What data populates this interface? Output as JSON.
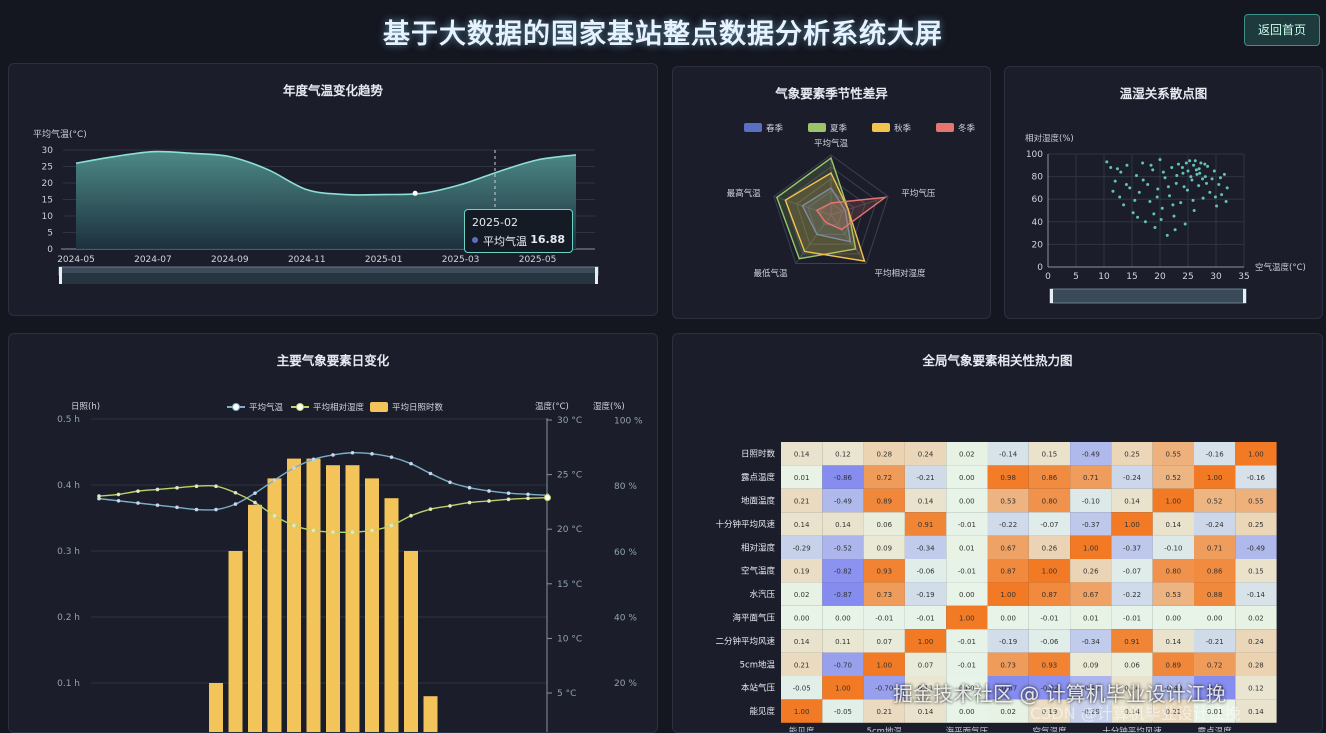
{
  "header": {
    "title": "基于大数据的国家基站整点数据分析系统大屏",
    "back_label": "返回首页"
  },
  "panels": {
    "trend": "年度气温变化趋势",
    "season": "气象要素季节性差异",
    "scatter": "温湿关系散点图",
    "daily": "主要气象要素日变化",
    "heatmap": "全局气象要素相关性热力图"
  },
  "tooltip": {
    "date": "2025-02",
    "label": "平均气温",
    "value": "16.88"
  },
  "watermark": {
    "text": "掘金技术社区 @ 计算机毕业设计江挽",
    "text2": "CSDN @计算机毕业设计江挽"
  },
  "colors": {
    "accent": "#6ed3c4",
    "temp_line": "#7ab0c6",
    "humid_line": "#b8d36a",
    "bar": "#f2c45a"
  },
  "chart_data": [
    {
      "id": "trend",
      "type": "area",
      "ylabel": "平均气温(°C)",
      "ylim": [
        0,
        30
      ],
      "yticks": [
        0,
        5,
        10,
        15,
        20,
        25,
        30
      ],
      "x": [
        "2024-05",
        "2024-06",
        "2024-07",
        "2024-08",
        "2024-09",
        "2024-10",
        "2024-11",
        "2024-12",
        "2025-01",
        "2025-02",
        "2025-03",
        "2025-04",
        "2025-05",
        "2025-06"
      ],
      "xticks": [
        "2024-05",
        "2024-07",
        "2024-09",
        "2024-11",
        "2025-01",
        "2025-03",
        "2025-05"
      ],
      "series": [
        {
          "name": "平均气温",
          "values": [
            26,
            28,
            29.5,
            29,
            28,
            24,
            18,
            16.5,
            16.5,
            16.88,
            19.5,
            23.5,
            27,
            28.5
          ]
        }
      ],
      "grid": true
    },
    {
      "id": "season",
      "type": "radar",
      "indicators": [
        "平均气温",
        "平均气压",
        "平均相对湿度",
        "最低气温",
        "最高气温"
      ],
      "legend": [
        "春季",
        "夏季",
        "秋季",
        "冬季"
      ],
      "legend_colors": [
        "#5b6fc2",
        "#9ac56a",
        "#f3c34f",
        "#e5756e"
      ],
      "series": [
        {
          "name": "春季",
          "values": [
            0.45,
            0.25,
            0.55,
            0.4,
            0.5
          ]
        },
        {
          "name": "夏季",
          "values": [
            0.95,
            0.3,
            0.7,
            0.9,
            0.95
          ]
        },
        {
          "name": "秋季",
          "values": [
            0.7,
            0.3,
            0.95,
            0.75,
            0.8
          ]
        },
        {
          "name": "冬季",
          "values": [
            0.2,
            0.95,
            0.3,
            0.15,
            0.25
          ]
        }
      ]
    },
    {
      "id": "scatter",
      "type": "scatter",
      "xlabel": "空气温度(°C)",
      "ylabel": "相对湿度(%)",
      "xlim": [
        0,
        35
      ],
      "ylim": [
        0,
        100
      ],
      "xticks": [
        0,
        5,
        10,
        15,
        20,
        25,
        30,
        35
      ],
      "yticks": [
        0,
        20,
        40,
        60,
        80,
        100
      ],
      "points": [
        [
          10.5,
          93
        ],
        [
          11.2,
          88
        ],
        [
          12.0,
          76
        ],
        [
          12.8,
          62
        ],
        [
          13.5,
          55
        ],
        [
          14.1,
          90
        ],
        [
          14.6,
          70
        ],
        [
          15.2,
          48
        ],
        [
          15.8,
          81
        ],
        [
          16.3,
          66
        ],
        [
          16.9,
          92
        ],
        [
          17.4,
          40
        ],
        [
          17.8,
          73
        ],
        [
          18.2,
          58
        ],
        [
          18.7,
          86
        ],
        [
          19.1,
          35
        ],
        [
          19.6,
          69
        ],
        [
          20.0,
          95
        ],
        [
          20.4,
          52
        ],
        [
          20.9,
          79
        ],
        [
          21.3,
          28
        ],
        [
          21.7,
          63
        ],
        [
          22.1,
          88
        ],
        [
          22.5,
          45
        ],
        [
          22.9,
          74
        ],
        [
          23.3,
          91
        ],
        [
          23.7,
          57
        ],
        [
          24.1,
          83
        ],
        [
          24.5,
          38
        ],
        [
          24.9,
          68
        ],
        [
          25.3,
          94
        ],
        [
          25.7,
          77
        ],
        [
          26.1,
          50
        ],
        [
          26.5,
          86
        ],
        [
          26.9,
          72
        ],
        [
          27.3,
          92
        ],
        [
          27.7,
          61
        ],
        [
          28.1,
          80
        ],
        [
          28.5,
          89
        ],
        [
          28.9,
          66
        ],
        [
          29.3,
          78
        ],
        [
          29.7,
          85
        ],
        [
          30.1,
          54
        ],
        [
          30.5,
          73
        ],
        [
          31.0,
          64
        ],
        [
          31.5,
          82
        ],
        [
          32.0,
          70
        ],
        [
          11.6,
          67
        ],
        [
          13.0,
          84
        ],
        [
          15.5,
          59
        ],
        [
          17.0,
          77
        ],
        [
          18.9,
          47
        ],
        [
          20.6,
          84
        ],
        [
          22.7,
          33
        ],
        [
          24.3,
          71
        ],
        [
          25.9,
          59
        ],
        [
          27.1,
          83
        ],
        [
          28.3,
          74
        ],
        [
          29.9,
          62
        ],
        [
          23.0,
          81
        ],
        [
          24.0,
          88
        ],
        [
          25.0,
          85
        ],
        [
          26.0,
          90
        ],
        [
          27.0,
          87
        ],
        [
          28.0,
          91
        ],
        [
          25.5,
          80
        ],
        [
          26.6,
          82
        ],
        [
          24.7,
          92
        ],
        [
          27.6,
          78
        ],
        [
          26.3,
          94
        ],
        [
          19.5,
          62
        ],
        [
          21.5,
          71
        ],
        [
          16.0,
          44
        ],
        [
          14.0,
          73
        ],
        [
          12.4,
          87
        ],
        [
          30.8,
          79
        ],
        [
          31.8,
          58
        ],
        [
          22.3,
          55
        ],
        [
          18.4,
          90
        ],
        [
          20.2,
          42
        ]
      ]
    },
    {
      "id": "daily",
      "type": "bar+line",
      "legend": [
        "平均气温",
        "平均相对湿度",
        "平均日照时数"
      ],
      "y_left_label": "日照(h)",
      "y_left_ticks": [
        "0.1 h",
        "0.2 h",
        "0.3 h",
        "0.4 h",
        "0.5 h"
      ],
      "y_temp_label": "温度(°C)",
      "y_temp_ticks": [
        "5 °C",
        "10 °C",
        "15 °C",
        "20 °C",
        "25 °C",
        "30 °C"
      ],
      "y_humid_label": "湿度(%)",
      "y_humid_ticks": [
        "20 %",
        "40 %",
        "60 %",
        "80 %",
        "100 %"
      ],
      "hours": [
        0,
        1,
        2,
        3,
        4,
        5,
        6,
        7,
        8,
        9,
        10,
        11,
        12,
        13,
        14,
        15,
        16,
        17,
        18,
        19,
        20,
        21,
        22,
        23
      ],
      "sunshine": [
        0,
        0,
        0,
        0,
        0,
        0,
        0.1,
        0.3,
        0.37,
        0.41,
        0.44,
        0.44,
        0.43,
        0.43,
        0.41,
        0.38,
        0.3,
        0.08,
        0,
        0,
        0,
        0,
        0,
        0
      ],
      "temperature": [
        22.8,
        22.6,
        22.4,
        22.2,
        22,
        21.8,
        21.8,
        22.3,
        23.3,
        24.5,
        25.6,
        26.4,
        26.8,
        27,
        26.9,
        26.6,
        26,
        25.1,
        24.3,
        23.8,
        23.5,
        23.3,
        23.2,
        23.1
      ],
      "humidity": [
        77,
        77.5,
        78.5,
        79,
        79.5,
        80,
        80,
        78,
        75,
        71,
        68,
        66.5,
        66,
        66,
        66.5,
        68,
        71,
        73,
        74,
        75,
        75.5,
        76,
        76.3,
        76.5
      ]
    },
    {
      "id": "heatmap",
      "type": "heatmap",
      "rows": [
        "日照时数",
        "露点温度",
        "地面温度",
        "十分钟平均风速",
        "相对湿度",
        "空气温度",
        "水汽压",
        "海平面气压",
        "二分钟平均风速",
        "5cm地温",
        "本站气压",
        "能见度"
      ],
      "col_labels": [
        "能见度",
        "5cm地温",
        "海平面气压",
        "空气温度",
        "十分钟平均风速",
        "露点温度"
      ],
      "values": [
        [
          0.14,
          0.12,
          0.28,
          0.24,
          0.02,
          -0.14,
          0.15,
          -0.49,
          0.25,
          0.55,
          -0.16,
          1.0
        ],
        [
          0.01,
          -0.86,
          0.72,
          -0.21,
          0.0,
          0.98,
          0.86,
          0.71,
          -0.24,
          0.52,
          1.0,
          -0.16
        ],
        [
          0.21,
          -0.49,
          0.89,
          0.14,
          0.0,
          0.53,
          0.8,
          -0.1,
          0.14,
          1.0,
          0.52,
          0.55
        ],
        [
          0.14,
          0.14,
          0.06,
          0.91,
          -0.01,
          -0.22,
          -0.07,
          -0.37,
          1.0,
          0.14,
          -0.24,
          0.25
        ],
        [
          -0.29,
          -0.52,
          0.09,
          -0.34,
          0.01,
          0.67,
          0.26,
          1.0,
          -0.37,
          -0.1,
          0.71,
          -0.49
        ],
        [
          0.19,
          -0.82,
          0.93,
          -0.06,
          -0.01,
          0.87,
          1.0,
          0.26,
          -0.07,
          0.8,
          0.86,
          0.15
        ],
        [
          0.02,
          -0.87,
          0.73,
          -0.19,
          0.0,
          1.0,
          0.87,
          0.67,
          -0.22,
          0.53,
          0.88,
          -0.14
        ],
        [
          0.0,
          0.0,
          -0.01,
          -0.01,
          1.0,
          0.0,
          -0.01,
          0.01,
          -0.01,
          0.0,
          0.0,
          0.02
        ],
        [
          0.14,
          0.11,
          0.07,
          1.0,
          -0.01,
          -0.19,
          -0.06,
          -0.34,
          0.91,
          0.14,
          -0.21,
          0.24
        ],
        [
          0.21,
          -0.7,
          1.0,
          0.07,
          -0.01,
          0.73,
          0.93,
          0.09,
          0.06,
          0.89,
          0.72,
          0.28
        ],
        [
          -0.05,
          1.0,
          -0.7,
          0.11,
          0.0,
          -0.87,
          -0.82,
          -0.52,
          0.14,
          -0.49,
          -0.86,
          0.12
        ],
        [
          1.0,
          -0.05,
          0.21,
          0.14,
          0.0,
          0.02,
          0.19,
          -0.29,
          0.14,
          0.21,
          0.01,
          0.14
        ]
      ]
    }
  ]
}
